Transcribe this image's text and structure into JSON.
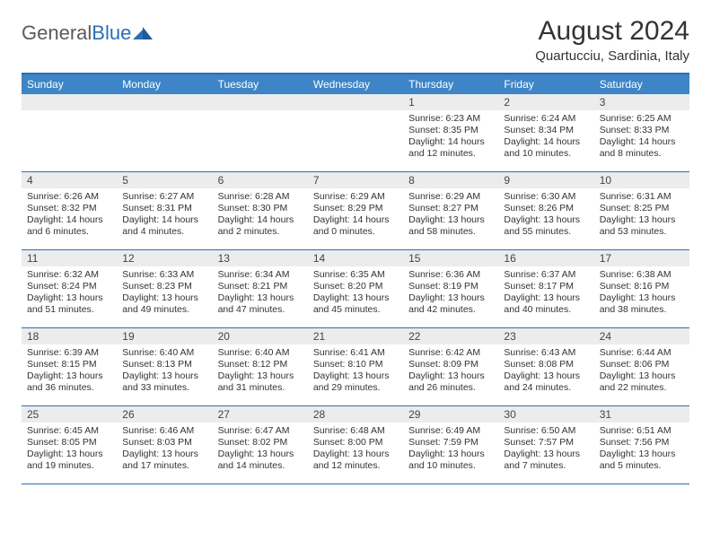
{
  "brand": {
    "name_part1": "General",
    "name_part2": "Blue"
  },
  "title": "August 2024",
  "location": "Quartucciu, Sardinia, Italy",
  "colors": {
    "header_bg": "#3d85c6",
    "border": "#2a6fb5",
    "daynum_bg": "#ececec",
    "text": "#333333"
  },
  "days_of_week": [
    "Sunday",
    "Monday",
    "Tuesday",
    "Wednesday",
    "Thursday",
    "Friday",
    "Saturday"
  ],
  "weeks": [
    [
      {
        "n": "",
        "lines": []
      },
      {
        "n": "",
        "lines": []
      },
      {
        "n": "",
        "lines": []
      },
      {
        "n": "",
        "lines": []
      },
      {
        "n": "1",
        "lines": [
          "Sunrise: 6:23 AM",
          "Sunset: 8:35 PM",
          "Daylight: 14 hours and 12 minutes."
        ]
      },
      {
        "n": "2",
        "lines": [
          "Sunrise: 6:24 AM",
          "Sunset: 8:34 PM",
          "Daylight: 14 hours and 10 minutes."
        ]
      },
      {
        "n": "3",
        "lines": [
          "Sunrise: 6:25 AM",
          "Sunset: 8:33 PM",
          "Daylight: 14 hours and 8 minutes."
        ]
      }
    ],
    [
      {
        "n": "4",
        "lines": [
          "Sunrise: 6:26 AM",
          "Sunset: 8:32 PM",
          "Daylight: 14 hours and 6 minutes."
        ]
      },
      {
        "n": "5",
        "lines": [
          "Sunrise: 6:27 AM",
          "Sunset: 8:31 PM",
          "Daylight: 14 hours and 4 minutes."
        ]
      },
      {
        "n": "6",
        "lines": [
          "Sunrise: 6:28 AM",
          "Sunset: 8:30 PM",
          "Daylight: 14 hours and 2 minutes."
        ]
      },
      {
        "n": "7",
        "lines": [
          "Sunrise: 6:29 AM",
          "Sunset: 8:29 PM",
          "Daylight: 14 hours and 0 minutes."
        ]
      },
      {
        "n": "8",
        "lines": [
          "Sunrise: 6:29 AM",
          "Sunset: 8:27 PM",
          "Daylight: 13 hours and 58 minutes."
        ]
      },
      {
        "n": "9",
        "lines": [
          "Sunrise: 6:30 AM",
          "Sunset: 8:26 PM",
          "Daylight: 13 hours and 55 minutes."
        ]
      },
      {
        "n": "10",
        "lines": [
          "Sunrise: 6:31 AM",
          "Sunset: 8:25 PM",
          "Daylight: 13 hours and 53 minutes."
        ]
      }
    ],
    [
      {
        "n": "11",
        "lines": [
          "Sunrise: 6:32 AM",
          "Sunset: 8:24 PM",
          "Daylight: 13 hours and 51 minutes."
        ]
      },
      {
        "n": "12",
        "lines": [
          "Sunrise: 6:33 AM",
          "Sunset: 8:23 PM",
          "Daylight: 13 hours and 49 minutes."
        ]
      },
      {
        "n": "13",
        "lines": [
          "Sunrise: 6:34 AM",
          "Sunset: 8:21 PM",
          "Daylight: 13 hours and 47 minutes."
        ]
      },
      {
        "n": "14",
        "lines": [
          "Sunrise: 6:35 AM",
          "Sunset: 8:20 PM",
          "Daylight: 13 hours and 45 minutes."
        ]
      },
      {
        "n": "15",
        "lines": [
          "Sunrise: 6:36 AM",
          "Sunset: 8:19 PM",
          "Daylight: 13 hours and 42 minutes."
        ]
      },
      {
        "n": "16",
        "lines": [
          "Sunrise: 6:37 AM",
          "Sunset: 8:17 PM",
          "Daylight: 13 hours and 40 minutes."
        ]
      },
      {
        "n": "17",
        "lines": [
          "Sunrise: 6:38 AM",
          "Sunset: 8:16 PM",
          "Daylight: 13 hours and 38 minutes."
        ]
      }
    ],
    [
      {
        "n": "18",
        "lines": [
          "Sunrise: 6:39 AM",
          "Sunset: 8:15 PM",
          "Daylight: 13 hours and 36 minutes."
        ]
      },
      {
        "n": "19",
        "lines": [
          "Sunrise: 6:40 AM",
          "Sunset: 8:13 PM",
          "Daylight: 13 hours and 33 minutes."
        ]
      },
      {
        "n": "20",
        "lines": [
          "Sunrise: 6:40 AM",
          "Sunset: 8:12 PM",
          "Daylight: 13 hours and 31 minutes."
        ]
      },
      {
        "n": "21",
        "lines": [
          "Sunrise: 6:41 AM",
          "Sunset: 8:10 PM",
          "Daylight: 13 hours and 29 minutes."
        ]
      },
      {
        "n": "22",
        "lines": [
          "Sunrise: 6:42 AM",
          "Sunset: 8:09 PM",
          "Daylight: 13 hours and 26 minutes."
        ]
      },
      {
        "n": "23",
        "lines": [
          "Sunrise: 6:43 AM",
          "Sunset: 8:08 PM",
          "Daylight: 13 hours and 24 minutes."
        ]
      },
      {
        "n": "24",
        "lines": [
          "Sunrise: 6:44 AM",
          "Sunset: 8:06 PM",
          "Daylight: 13 hours and 22 minutes."
        ]
      }
    ],
    [
      {
        "n": "25",
        "lines": [
          "Sunrise: 6:45 AM",
          "Sunset: 8:05 PM",
          "Daylight: 13 hours and 19 minutes."
        ]
      },
      {
        "n": "26",
        "lines": [
          "Sunrise: 6:46 AM",
          "Sunset: 8:03 PM",
          "Daylight: 13 hours and 17 minutes."
        ]
      },
      {
        "n": "27",
        "lines": [
          "Sunrise: 6:47 AM",
          "Sunset: 8:02 PM",
          "Daylight: 13 hours and 14 minutes."
        ]
      },
      {
        "n": "28",
        "lines": [
          "Sunrise: 6:48 AM",
          "Sunset: 8:00 PM",
          "Daylight: 13 hours and 12 minutes."
        ]
      },
      {
        "n": "29",
        "lines": [
          "Sunrise: 6:49 AM",
          "Sunset: 7:59 PM",
          "Daylight: 13 hours and 10 minutes."
        ]
      },
      {
        "n": "30",
        "lines": [
          "Sunrise: 6:50 AM",
          "Sunset: 7:57 PM",
          "Daylight: 13 hours and 7 minutes."
        ]
      },
      {
        "n": "31",
        "lines": [
          "Sunrise: 6:51 AM",
          "Sunset: 7:56 PM",
          "Daylight: 13 hours and 5 minutes."
        ]
      }
    ]
  ]
}
